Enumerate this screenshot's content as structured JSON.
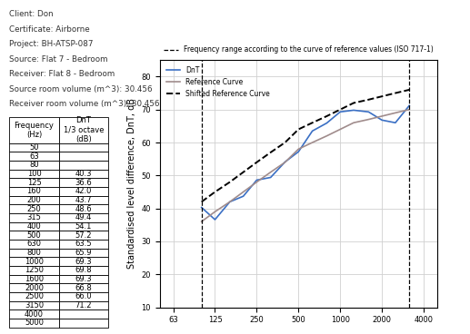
{
  "header": {
    "lines": [
      "Client: Don",
      "Certificate: Airborne",
      "Project: BH-ATSP-087",
      "Source: Flat 7 - Bedroom",
      "Receiver: Flat 8 - Bedroom",
      "Source room volume (m^3): 30.456",
      "Receiver room volume (m^3): 30.456"
    ]
  },
  "table": {
    "columns": [
      "Frequency\n(Hz)",
      "DnT\n1/3 octave\n(dB)"
    ],
    "rows": [
      [
        50,
        null
      ],
      [
        63,
        null
      ],
      [
        80,
        null
      ],
      [
        100,
        40.3
      ],
      [
        125,
        36.6
      ],
      [
        160,
        42.0
      ],
      [
        200,
        43.7
      ],
      [
        250,
        48.6
      ],
      [
        315,
        49.4
      ],
      [
        400,
        54.1
      ],
      [
        500,
        57.2
      ],
      [
        630,
        63.5
      ],
      [
        800,
        65.9
      ],
      [
        1000,
        69.3
      ],
      [
        1250,
        69.8
      ],
      [
        1600,
        69.3
      ],
      [
        2000,
        66.8
      ],
      [
        2500,
        66.0
      ],
      [
        3150,
        71.2
      ],
      [
        4000,
        null
      ],
      [
        5000,
        null
      ]
    ]
  },
  "chart_data": {
    "type": "line",
    "y_label": "Standardised level difference, DnT, dB",
    "x": [
      100,
      125,
      160,
      200,
      250,
      315,
      400,
      500,
      630,
      800,
      1000,
      1250,
      1600,
      2000,
      2500,
      3150
    ],
    "series": [
      {
        "name": "DnT",
        "color": "#3a6fc4",
        "line_style": "solid",
        "values": [
          40.3,
          36.6,
          42.0,
          43.7,
          48.6,
          49.4,
          54.1,
          57.2,
          63.5,
          65.9,
          69.3,
          69.8,
          69.3,
          66.8,
          66.0,
          71.2
        ]
      },
      {
        "name": "Reference Curve",
        "color": "#a08c8c",
        "line_style": "solid",
        "values": [
          36,
          39,
          42,
          45,
          48,
          51,
          54,
          58,
          60,
          62,
          64,
          66,
          67,
          68,
          69,
          70
        ]
      },
      {
        "name": "Shifted Reference Curve",
        "color": "#000000",
        "line_style": "dashed",
        "values": [
          42,
          45,
          48,
          51,
          54,
          57,
          60,
          64,
          66,
          68,
          70,
          72,
          73,
          74,
          75,
          76
        ]
      }
    ],
    "range_lines": {
      "name": "Frequency range according to the curve of reference values (ISO 717-1)",
      "color": "#000000",
      "line_style": "dashed",
      "x": [
        100,
        3150
      ]
    },
    "log": "x",
    "xlim": [
      50,
      5000
    ],
    "xticks": [
      63,
      125,
      250,
      500,
      1000,
      2000,
      4000
    ],
    "ylim": [
      10,
      85
    ],
    "yticks": [
      10,
      20,
      30,
      40,
      50,
      60,
      70,
      80
    ],
    "grid": true,
    "legend": "upper left"
  }
}
